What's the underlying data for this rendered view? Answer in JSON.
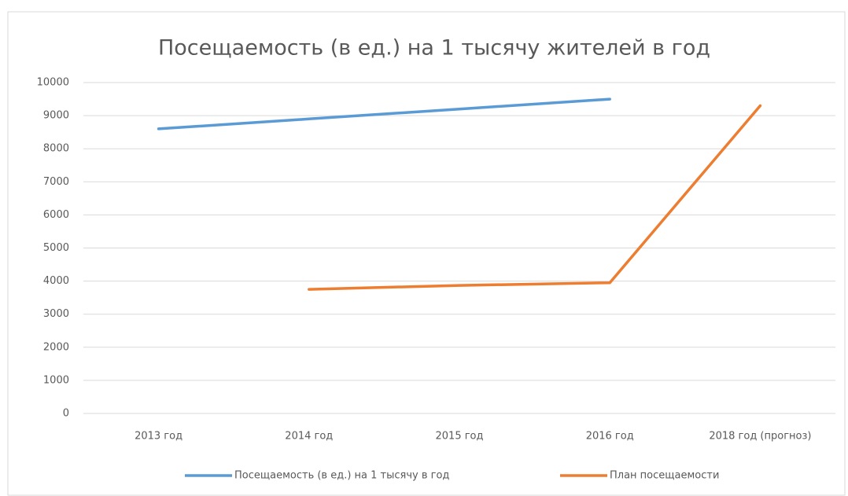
{
  "chart_data": {
    "type": "line",
    "title": "Посещаемость (в ед.) на 1 тысячу жителей в год",
    "categories": [
      "2013 год",
      "2014 год",
      "2015 год",
      "2016 год",
      "2018 год (прогноз)"
    ],
    "series": [
      {
        "name": "Посещаемость (в ед.) на 1 тысячу в год",
        "color": "#5b9bd5",
        "values": [
          8600,
          8900,
          9200,
          9500,
          null
        ]
      },
      {
        "name": "План посещаемости",
        "color": "#ed7d31",
        "values": [
          null,
          3750,
          3870,
          3950,
          9300
        ]
      }
    ],
    "ylim": [
      0,
      10000
    ],
    "yticks": [
      0,
      1000,
      2000,
      3000,
      4000,
      5000,
      6000,
      7000,
      8000,
      9000,
      10000
    ],
    "grid": true,
    "legend": "bottom"
  }
}
